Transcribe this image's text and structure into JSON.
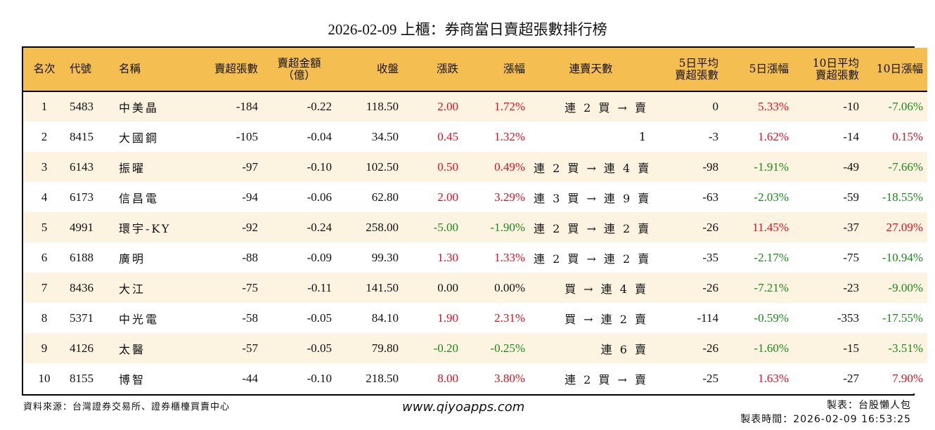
{
  "title": "2026-02-09 上櫃：券商當日賣超張數排行榜",
  "header": {
    "rank": "名次",
    "code": "代號",
    "name": "名稱",
    "net_sell_lots": "賣超張數",
    "net_sell_amount_l1": "賣超金額",
    "net_sell_amount_l2": "（億）",
    "close": "收盤",
    "change": "漲跌",
    "pct_change": "漲幅",
    "streak": "連賣天數",
    "avg5_l1": "5日平均",
    "avg5_l2": "賣超張數",
    "pct5": "5日漲幅",
    "avg10_l1": "10日平均",
    "avg10_l2": "賣超張數",
    "pct10": "10日漲幅"
  },
  "colors": {
    "header_bg": "#F5BE50",
    "row_odd_bg": "#FDF3E1",
    "row_even_bg": "#FFFFFF",
    "up": "#E0101F",
    "down": "#1A8A1A"
  },
  "rows": [
    {
      "rank": "1",
      "code": "5483",
      "name": "中美晶",
      "lots": "-184",
      "amount": "-0.22",
      "close": "118.50",
      "change": "2.00",
      "pct": "1.72%",
      "streak": "連 2 買 → 賣",
      "avg5": "0",
      "pct5": "5.33%",
      "avg10": "-10",
      "pct10": "-7.06%"
    },
    {
      "rank": "2",
      "code": "8415",
      "name": "大國鋼",
      "lots": "-105",
      "amount": "-0.04",
      "close": "34.50",
      "change": "0.45",
      "pct": "1.32%",
      "streak": "1",
      "avg5": "-3",
      "pct5": "1.62%",
      "avg10": "-14",
      "pct10": "0.15%"
    },
    {
      "rank": "3",
      "code": "6143",
      "name": "振曜",
      "lots": "-97",
      "amount": "-0.10",
      "close": "102.50",
      "change": "0.50",
      "pct": "0.49%",
      "streak": "連 2 買 → 連 4 賣",
      "avg5": "-98",
      "pct5": "-1.91%",
      "avg10": "-49",
      "pct10": "-7.66%"
    },
    {
      "rank": "4",
      "code": "6173",
      "name": "信昌電",
      "lots": "-94",
      "amount": "-0.06",
      "close": "62.80",
      "change": "2.00",
      "pct": "3.29%",
      "streak": "連 3 買 → 連 9 賣",
      "avg5": "-63",
      "pct5": "-2.03%",
      "avg10": "-59",
      "pct10": "-18.55%"
    },
    {
      "rank": "5",
      "code": "4991",
      "name": "環宇-KY",
      "lots": "-92",
      "amount": "-0.24",
      "close": "258.00",
      "change": "-5.00",
      "pct": "-1.90%",
      "streak": "連 2 買 → 連 2 賣",
      "avg5": "-26",
      "pct5": "11.45%",
      "avg10": "-37",
      "pct10": "27.09%"
    },
    {
      "rank": "6",
      "code": "6188",
      "name": "廣明",
      "lots": "-88",
      "amount": "-0.09",
      "close": "99.30",
      "change": "1.30",
      "pct": "1.33%",
      "streak": "連 2 買 → 連 2 賣",
      "avg5": "-35",
      "pct5": "-2.17%",
      "avg10": "-75",
      "pct10": "-10.94%"
    },
    {
      "rank": "7",
      "code": "8436",
      "name": "大江",
      "lots": "-75",
      "amount": "-0.11",
      "close": "141.50",
      "change": "0.00",
      "pct": "0.00%",
      "streak": "買 → 連 4 賣",
      "avg5": "-26",
      "pct5": "-7.21%",
      "avg10": "-23",
      "pct10": "-9.00%"
    },
    {
      "rank": "8",
      "code": "5371",
      "name": "中光電",
      "lots": "-58",
      "amount": "-0.05",
      "close": "84.10",
      "change": "1.90",
      "pct": "2.31%",
      "streak": "買 → 連 2 賣",
      "avg5": "-114",
      "pct5": "-0.59%",
      "avg10": "-353",
      "pct10": "-17.55%"
    },
    {
      "rank": "9",
      "code": "4126",
      "name": "太醫",
      "lots": "-57",
      "amount": "-0.05",
      "close": "79.80",
      "change": "-0.20",
      "pct": "-0.25%",
      "streak": "連 6 賣",
      "avg5": "-26",
      "pct5": "-1.60%",
      "avg10": "-15",
      "pct10": "-3.51%"
    },
    {
      "rank": "10",
      "code": "8155",
      "name": "博智",
      "lots": "-44",
      "amount": "-0.10",
      "close": "218.50",
      "change": "8.00",
      "pct": "3.80%",
      "streak": "連 2 買 → 賣",
      "avg5": "-25",
      "pct5": "1.63%",
      "avg10": "-27",
      "pct10": "7.90%"
    }
  ],
  "footer": {
    "source": "資料來源：台灣證券交易所、證券櫃檯買賣中心",
    "website": "www.qiyoapps.com",
    "maker": "製表：台股懶人包",
    "made_time": "製表時間：2026-02-09 16:53:25"
  }
}
